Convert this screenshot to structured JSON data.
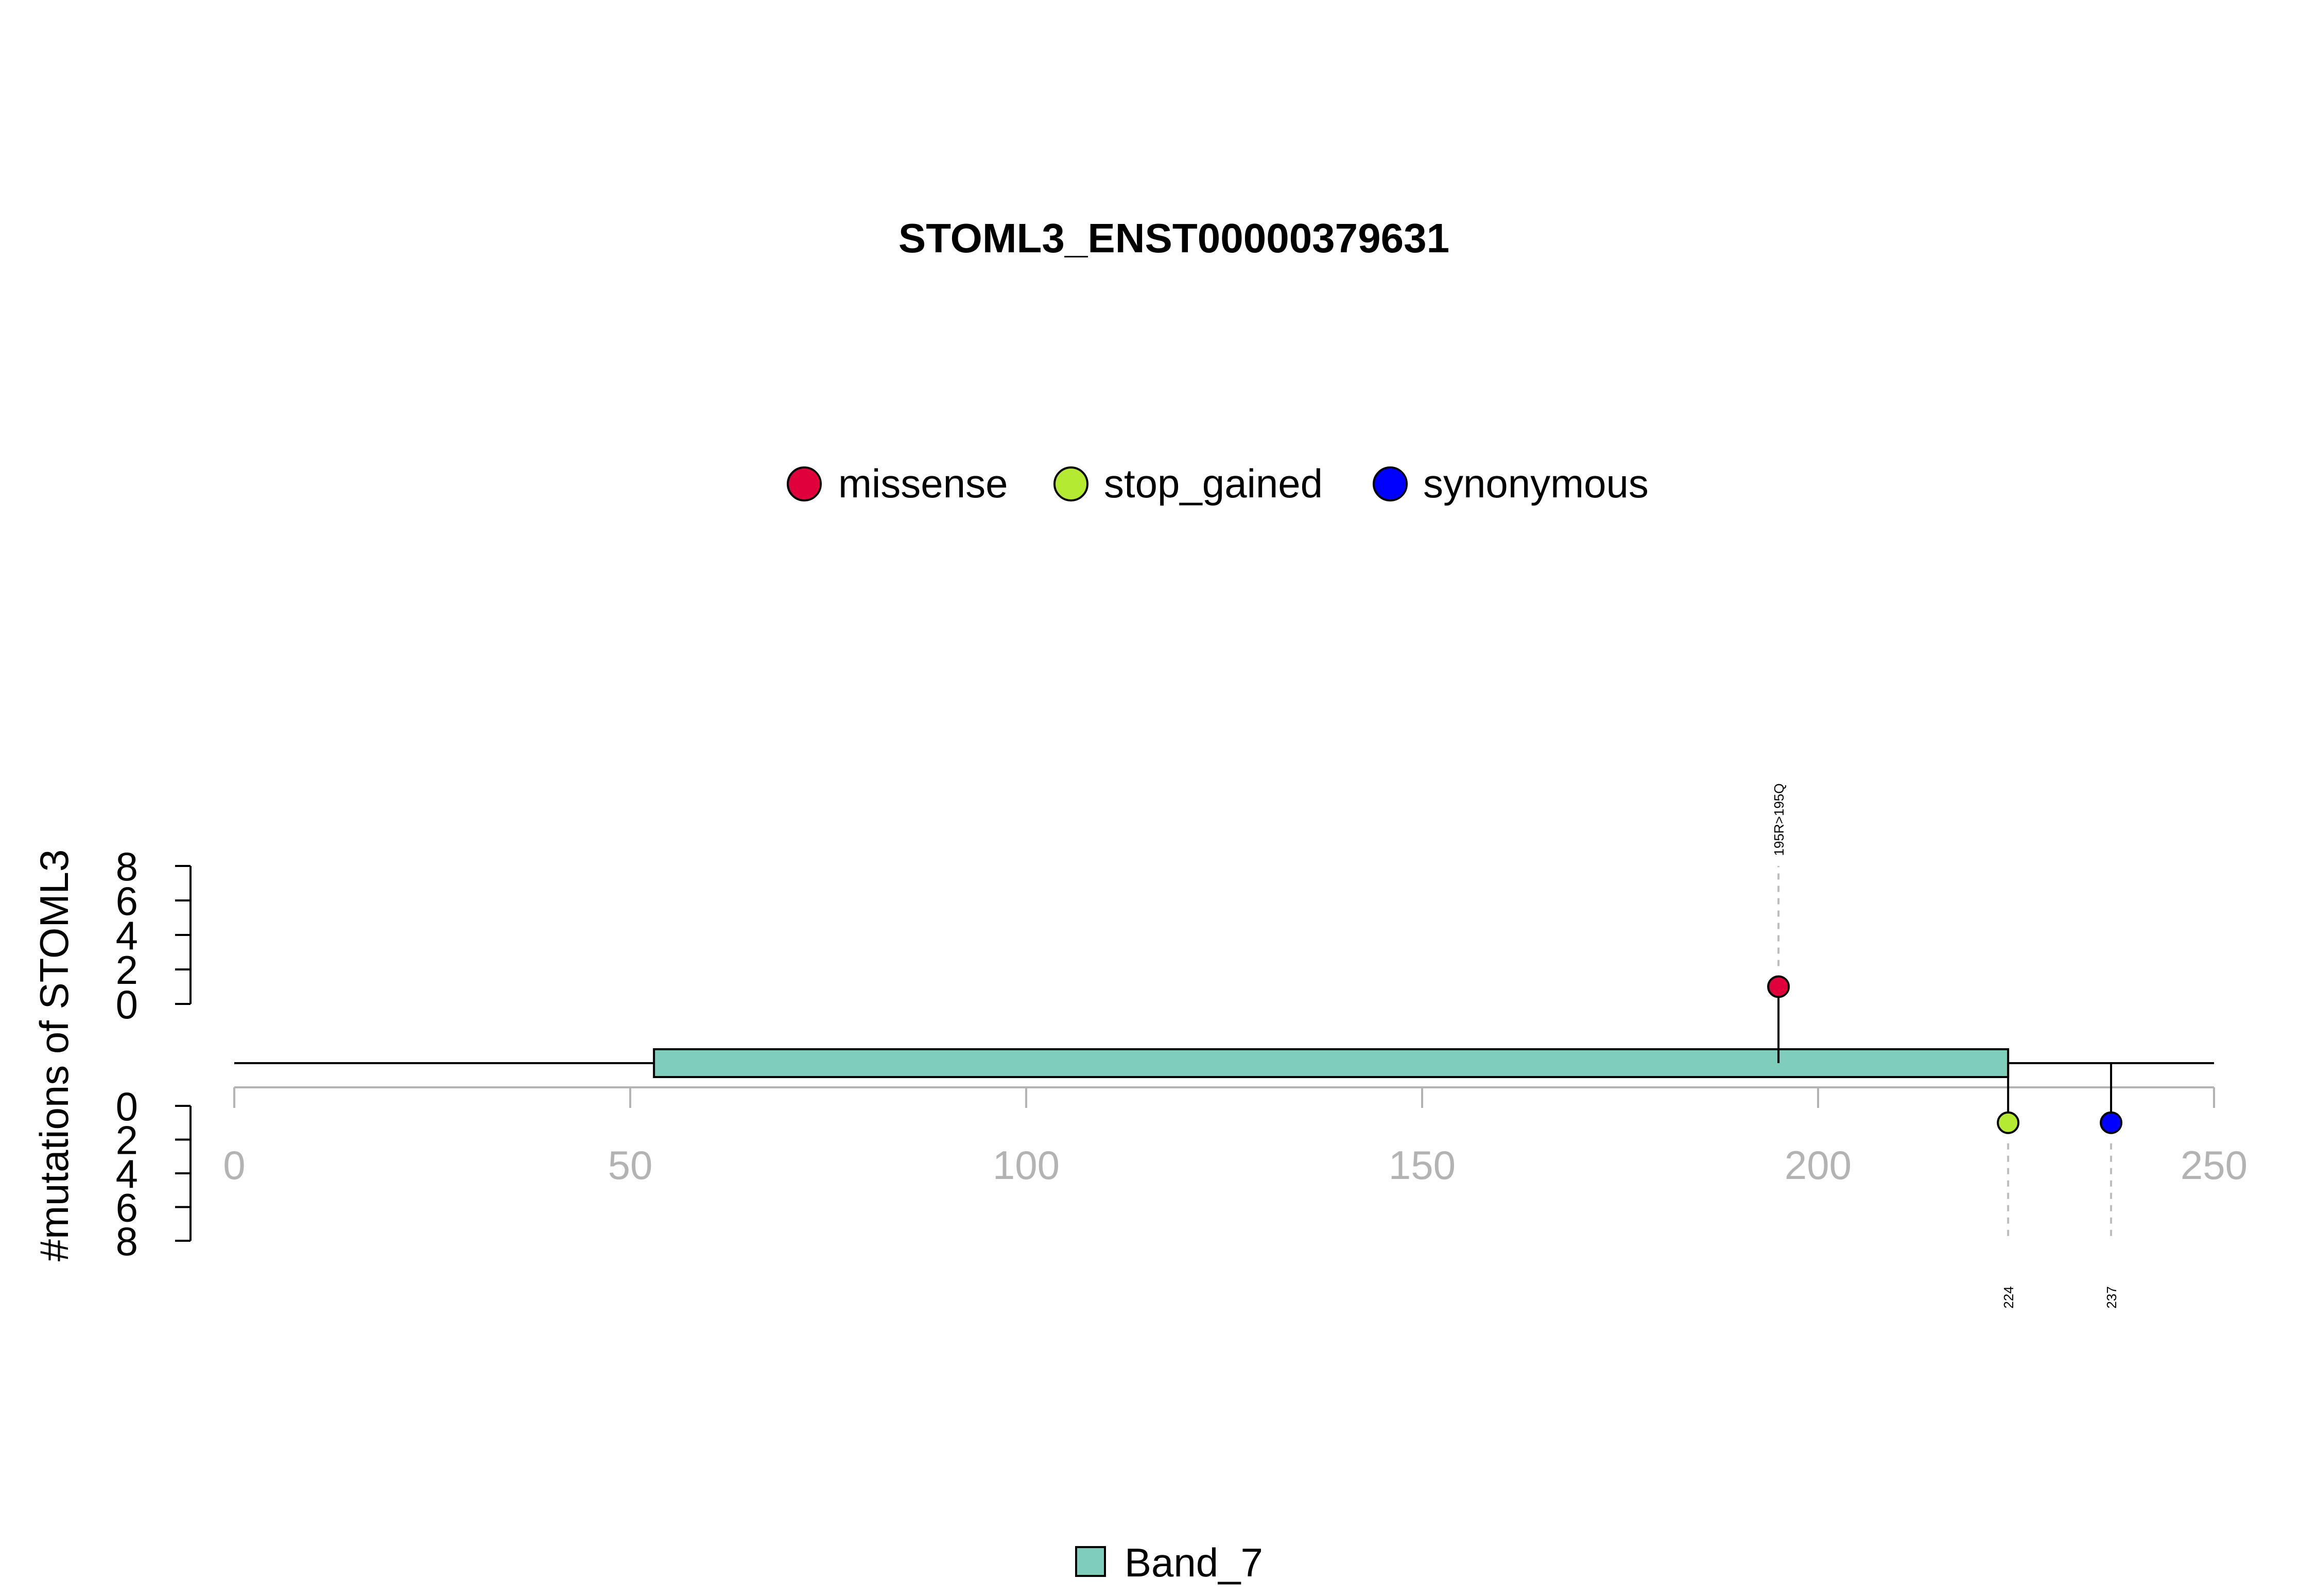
{
  "chart_data": {
    "type": "lollipop",
    "title": "STOML3_ENST00000379631",
    "ylabel": "#mutations of STOML3",
    "xlim": [
      0,
      250
    ],
    "x_ticks": [
      0,
      50,
      100,
      150,
      200,
      250
    ],
    "y_ticks": [
      0,
      2,
      4,
      6,
      8
    ],
    "ylim": [
      0,
      8
    ],
    "protein_length": 250,
    "legend": [
      {
        "label": "missense",
        "color": "#E0003C"
      },
      {
        "label": "stop_gained",
        "color": "#B4EB32"
      },
      {
        "label": "synonymous",
        "color": "#0000FF"
      }
    ],
    "domains": [
      {
        "name": "Band_7",
        "start": 53,
        "end": 224,
        "color": "#7FCDBB"
      }
    ],
    "mutations": [
      {
        "position": 195,
        "count": 1,
        "type": "missense",
        "side": "top",
        "label": "195R>195Q"
      },
      {
        "position": 224,
        "count": 1,
        "type": "stop_gained",
        "side": "bottom",
        "label": "224"
      },
      {
        "position": 237,
        "count": 1,
        "type": "synonymous",
        "side": "bottom",
        "label": "237"
      }
    ]
  }
}
